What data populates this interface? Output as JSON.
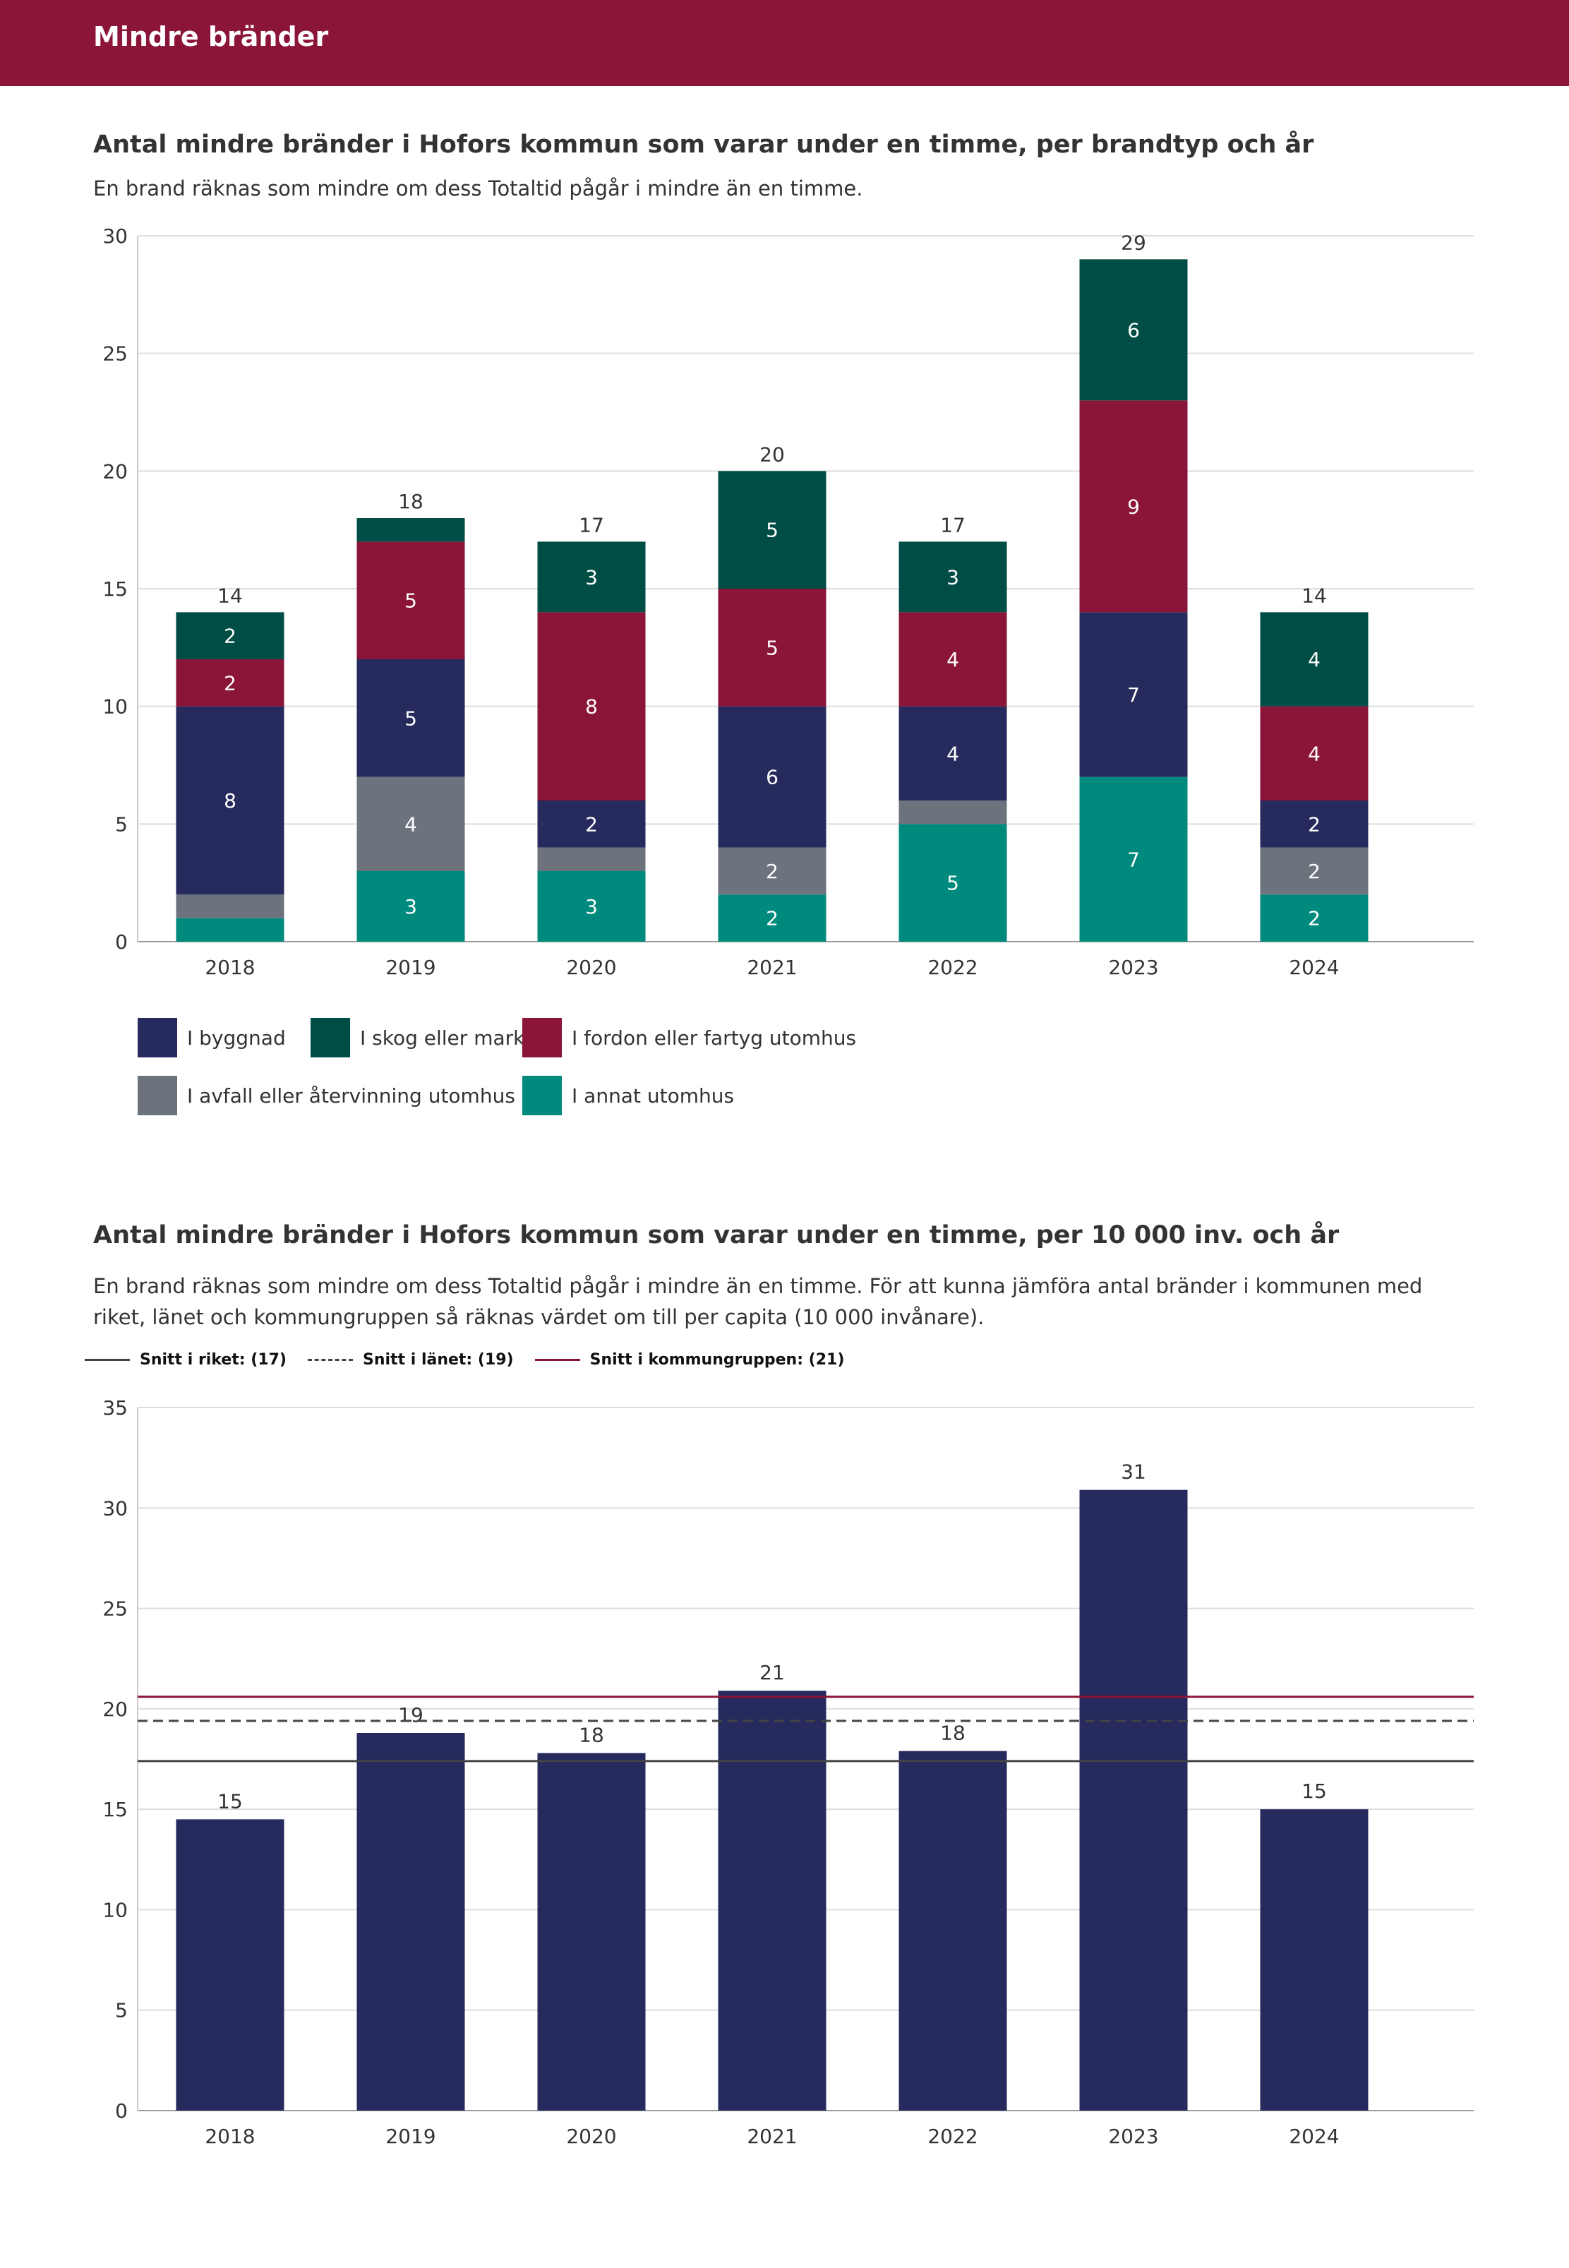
{
  "header": {
    "title": "Mindre bränder"
  },
  "chart1": {
    "title": "Antal mindre bränder i Hofors kommun som varar under en timme, per brandtyp och år",
    "subtitle": "En brand räknas som mindre om dess Totaltid pågår i mindre än en timme."
  },
  "chart2": {
    "title": "Antal mindre bränder i Hofors kommun som varar under en timme, per 10 000 inv. och år",
    "subtitle": "En brand räknas som mindre om dess Totaltid pågår i mindre än en timme. För att kunna jämföra antal bränder i kommunen med riket, länet och kommungruppen så räknas värdet om till per capita (10 000 invånare)."
  },
  "chart_data": [
    {
      "type": "bar",
      "stacked": true,
      "categories": [
        "2018",
        "2019",
        "2020",
        "2021",
        "2022",
        "2023",
        "2024"
      ],
      "totals": [
        14,
        18,
        17,
        20,
        17,
        29,
        14
      ],
      "series": [
        {
          "name": "I annat utomhus",
          "color": "#008a7e",
          "values": [
            1,
            3,
            3,
            2,
            5,
            7,
            2
          ],
          "labels": [
            "",
            "3",
            "3",
            "2",
            "5",
            "7",
            "2"
          ]
        },
        {
          "name": "I avfall eller återvinning utomhus",
          "color": "#6d737c",
          "values": [
            1,
            4,
            1,
            2,
            1,
            0,
            2
          ],
          "labels": [
            "",
            "4",
            "",
            "2",
            "",
            "",
            "2"
          ]
        },
        {
          "name": "I byggnad",
          "color": "#262a5c",
          "values": [
            8,
            5,
            2,
            6,
            4,
            7,
            2
          ],
          "labels": [
            "8",
            "5",
            "2",
            "6",
            "4",
            "7",
            "2"
          ]
        },
        {
          "name": "I fordon eller fartyg utomhus",
          "color": "#8b1538",
          "values": [
            2,
            5,
            8,
            5,
            4,
            9,
            4
          ],
          "labels": [
            "2",
            "5",
            "8",
            "5",
            "4",
            "9",
            "4"
          ]
        },
        {
          "name": "I skog eller mark",
          "color": "#004d45",
          "values": [
            2,
            1,
            3,
            5,
            3,
            6,
            4
          ],
          "labels": [
            "2",
            "",
            "3",
            "5",
            "3",
            "6",
            "4"
          ]
        }
      ],
      "legend": [
        {
          "name": "I byggnad",
          "color": "#262a5c"
        },
        {
          "name": "I skog eller mark",
          "color": "#004d45"
        },
        {
          "name": "I fordon eller fartyg utomhus",
          "color": "#8b1538"
        },
        {
          "name": "I avfall eller återvinning utomhus",
          "color": "#6d737c"
        },
        {
          "name": "I annat utomhus",
          "color": "#008a7e"
        }
      ],
      "ylim": [
        0,
        30
      ],
      "yticks": [
        0,
        5,
        10,
        15,
        20,
        25,
        30
      ],
      "grid": true
    },
    {
      "type": "bar",
      "categories": [
        "2018",
        "2019",
        "2020",
        "2021",
        "2022",
        "2023",
        "2024"
      ],
      "values": [
        14.5,
        18.8,
        17.8,
        20.9,
        17.9,
        30.9,
        15.0
      ],
      "value_labels": [
        "15",
        "19",
        "18",
        "21",
        "18",
        "31",
        "15"
      ],
      "color": "#262a5c",
      "ylim": [
        0,
        35
      ],
      "yticks": [
        0,
        5,
        10,
        15,
        20,
        25,
        30,
        35
      ],
      "grid": true,
      "reference_lines": [
        {
          "label": "Snitt i riket: (17)",
          "value": 17.4,
          "color": "#444444",
          "style": "solid"
        },
        {
          "label": "Snitt i länet: (19)",
          "value": 19.4,
          "color": "#444444",
          "style": "dashed"
        },
        {
          "label": "Snitt i kommungruppen: (21)",
          "value": 20.6,
          "color": "#8b1538",
          "style": "solid"
        }
      ]
    }
  ]
}
